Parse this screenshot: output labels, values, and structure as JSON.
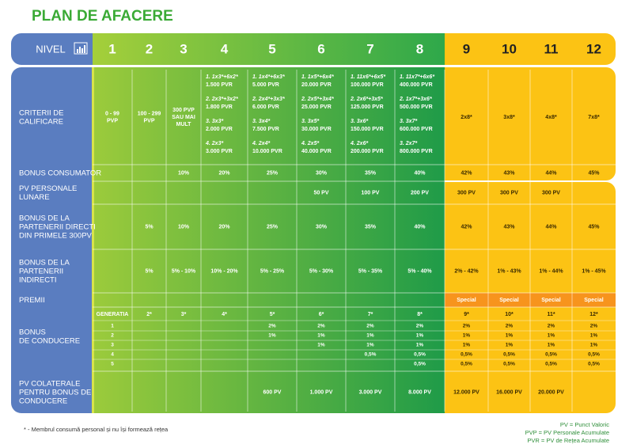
{
  "title": "PLAN DE AFACERE",
  "header": {
    "label": "NIVEL",
    "levels": [
      "1",
      "2",
      "3",
      "4",
      "5",
      "6",
      "7",
      "8",
      "9",
      "10",
      "11",
      "12"
    ]
  },
  "rows": [
    {
      "label": [
        "CRITERII DE",
        "CALIFICARE"
      ],
      "cells": [
        [
          "0 - 99",
          "PVP"
        ],
        [
          "100 - 299",
          "PVP"
        ],
        [
          "300 PVP",
          "SAU MAI",
          "MULT"
        ],
        [
          "1. 1x3*+6x2*",
          "1.500 PVR",
          "2. 2x3*+3x2*",
          "1.800 PVR",
          "3. 3x3*",
          "2.000 PVR",
          "4. 2x3*",
          "3.000 PVR"
        ],
        [
          "1. 1x4*+6x3*",
          "5.000 PVR",
          "2. 2x4*+3x3*",
          "6.000 PVR",
          "3. 3x4*",
          "7.500 PVR",
          "4. 2x4*",
          "10.000 PVR"
        ],
        [
          "1. 1x5*+6x4*",
          "20.000 PVR",
          "2. 2x5*+3x4*",
          "25.000 PVR",
          "3. 3x5*",
          "30.000 PVR",
          "4. 2x5*",
          "40.000 PVR"
        ],
        [
          "1. 11x6*+6x5*",
          "100.000 PVR",
          "2. 2x6*+3x5*",
          "125.000 PVR",
          "3. 3x6*",
          "150.000 PVR",
          "4. 2x6*",
          "200.000 PVR"
        ],
        [
          "1. 11x7*+6x6*",
          "400.000 PVR",
          "2. 1x7*+3x6*",
          "500.000 PVR",
          "3. 3x7*",
          "600.000 PVR",
          "3. 2x7*",
          "800.000 PVR"
        ],
        "2x8*",
        "3x8*",
        "4x8*",
        "7x8*"
      ]
    },
    {
      "label": [
        "BONUS CONSUMATOR"
      ],
      "cells": [
        null,
        null,
        "10%",
        "20%",
        "25%",
        "30%",
        "35%",
        "40%",
        "42%",
        "43%",
        "44%",
        "45%"
      ]
    },
    {
      "label": [
        "PV PERSONALE",
        "LUNARE"
      ],
      "cells": [
        null,
        null,
        null,
        null,
        null,
        "50 PV",
        "100 PV",
        "200 PV",
        "300 PV",
        "300 PV",
        "300 PV",
        null
      ]
    },
    {
      "label": [
        "BONUS DE LA",
        "PARTENERII DIRECTI",
        "DIN PRIMELE 300PV"
      ],
      "cells": [
        null,
        "5%",
        "10%",
        "20%",
        "25%",
        "30%",
        "35%",
        "40%",
        "42%",
        "43%",
        "44%",
        "45%"
      ]
    },
    {
      "label": [
        "BONUS DE LA",
        "PARTENERII",
        "INDIRECTI"
      ],
      "cells": [
        null,
        "5%",
        "5% - 10%",
        "10% - 20%",
        "5% - 25%",
        "5% - 30%",
        "5% - 35%",
        "5% - 40%",
        "2% - 42%",
        "1% - 43%",
        "1% - 44%",
        "1% - 45%"
      ]
    },
    {
      "label": [
        "PREMII"
      ],
      "cells": [
        null,
        null,
        null,
        null,
        null,
        null,
        null,
        null,
        "Special",
        "Special",
        "Special",
        "Special"
      ]
    },
    {
      "label": [
        "PV COLATERALE",
        "PENTRU BONUS DE",
        "CONDUCERE"
      ],
      "cells": [
        null,
        null,
        null,
        null,
        "600 PV",
        "1.000 PV",
        "3.000 PV",
        "8.000 PV",
        "12.000 PV",
        "16.000 PV",
        "20.000 PV",
        null
      ]
    }
  ],
  "leadership": {
    "label": [
      "BONUS",
      "DE CONDUCERE"
    ],
    "generation_row": [
      "GENERATIA",
      "2*",
      "3*",
      "4*",
      "5*",
      "6*",
      "7*",
      "8*",
      "9*",
      "10*",
      "11*",
      "12*"
    ],
    "rows": [
      [
        "1",
        null,
        null,
        null,
        "2%",
        "2%",
        "2%",
        "2%",
        "2%",
        "2%",
        "2%",
        "2%"
      ],
      [
        "2",
        null,
        null,
        null,
        "1%",
        "1%",
        "1%",
        "1%",
        "1%",
        "1%",
        "1%",
        "1%"
      ],
      [
        "3",
        null,
        null,
        null,
        null,
        "1%",
        "1%",
        "1%",
        "1%",
        "1%",
        "1%",
        "1%"
      ],
      [
        "4",
        null,
        null,
        null,
        null,
        null,
        "0,5%",
        "0,5%",
        "0,5%",
        "0,5%",
        "0,5%",
        "0,5%"
      ],
      [
        "5",
        null,
        null,
        null,
        null,
        null,
        null,
        "0,5%",
        "0,5%",
        "0,5%",
        "0,5%",
        "0,5%"
      ]
    ]
  },
  "footnote": "* - Membrul consumă personal și nu își formează rețea",
  "legend": [
    "PV = Punct Valoric",
    "PVP = PV Personale Acumulate",
    "PVR = PV de Rețea Acumulate"
  ]
}
